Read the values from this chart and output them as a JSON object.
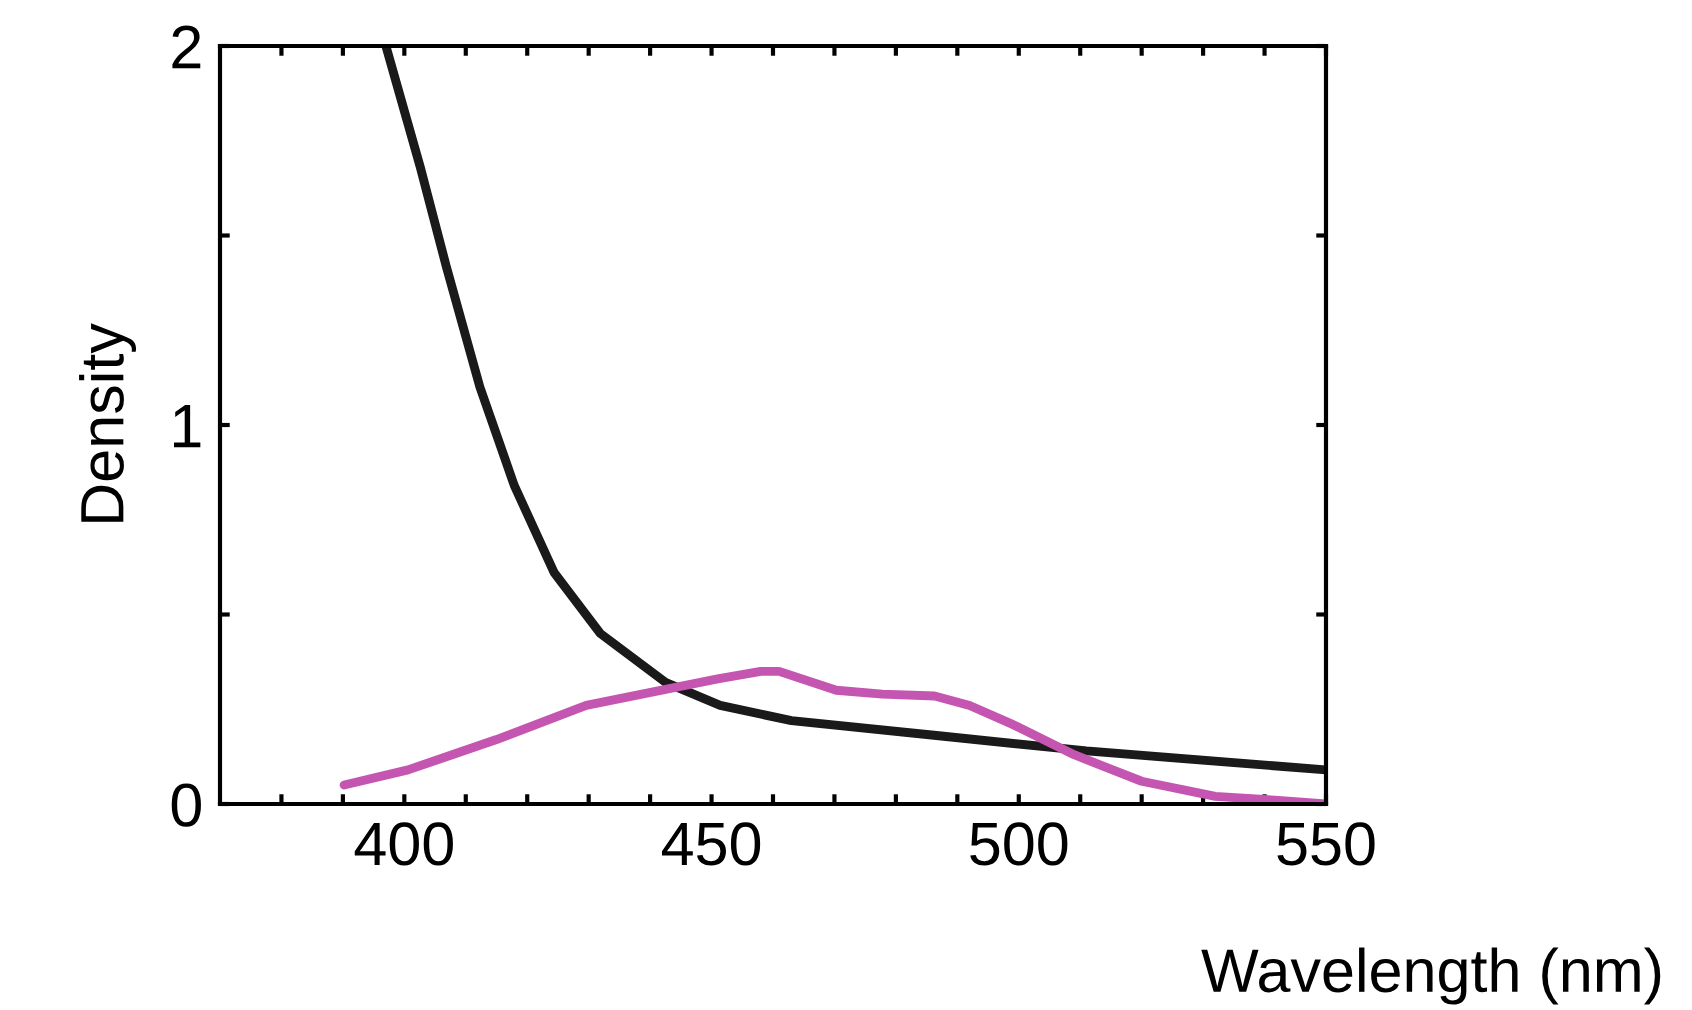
{
  "chart_data": {
    "type": "line",
    "xlabel": "Wavelength (nm)",
    "ylabel": "Density",
    "xlim": [
      370,
      550
    ],
    "ylim": [
      0,
      2
    ],
    "xticks": [
      {
        "value": 380,
        "label": null
      },
      {
        "value": 390,
        "label": null
      },
      400,
      {
        "value": 410,
        "label": null
      },
      {
        "value": 420,
        "label": null
      },
      {
        "value": 430,
        "label": null
      },
      {
        "value": 440,
        "label": null
      },
      450,
      {
        "value": 460,
        "label": null
      },
      {
        "value": 470,
        "label": null
      },
      {
        "value": 480,
        "label": null
      },
      {
        "value": 490,
        "label": null
      },
      500,
      {
        "value": 510,
        "label": null
      },
      {
        "value": 520,
        "label": null
      },
      {
        "value": 530,
        "label": null
      },
      {
        "value": 540,
        "label": null
      },
      550
    ],
    "yticks": [
      0,
      {
        "value": 0.5,
        "label": null
      },
      1,
      {
        "value": 1.5,
        "label": null
      },
      2
    ],
    "grid": false,
    "legend": false,
    "line_style": "solid",
    "marker": "none",
    "series": [
      {
        "color": "#1a1a1a",
        "x": [
          397,
          402.6,
          406.8,
          412.3,
          417.9,
          424.4,
          431.9,
          442.6,
          451.4,
          463,
          487,
          511,
          550
        ],
        "values": [
          2.0,
          1.68,
          1.42,
          1.1,
          0.84,
          0.61,
          0.45,
          0.32,
          0.26,
          0.22,
          0.18,
          0.14,
          0.09
        ]
      },
      {
        "color": "#c455b0",
        "x": [
          390.2,
          400.6,
          415,
          429.6,
          441.7,
          451,
          458,
          461,
          470.3,
          477.8,
          486.3,
          492,
          499,
          509,
          520,
          532,
          541.7,
          550
        ],
        "values": [
          0.05,
          0.09,
          0.17,
          0.26,
          0.3,
          0.33,
          0.35,
          0.35,
          0.3,
          0.29,
          0.285,
          0.26,
          0.21,
          0.13,
          0.06,
          0.02,
          0.01,
          0.0
        ]
      }
    ]
  }
}
